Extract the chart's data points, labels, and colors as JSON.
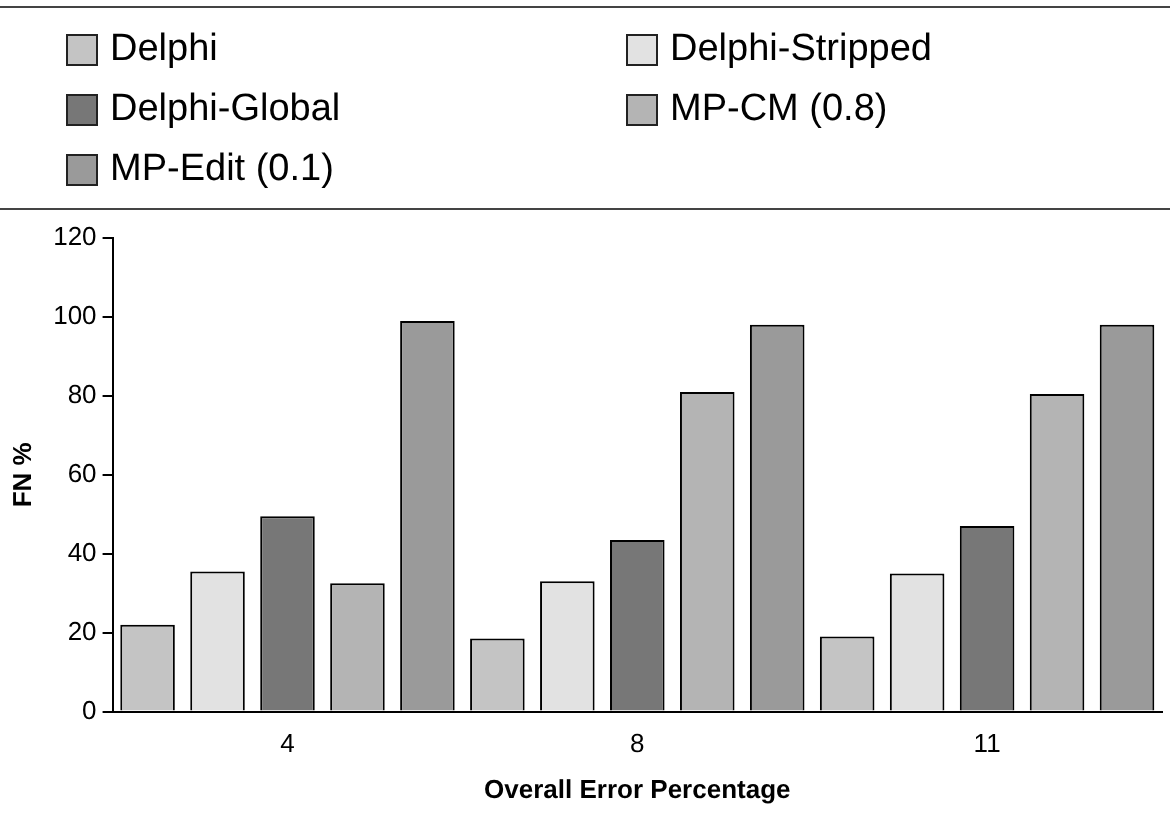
{
  "chart_data": {
    "type": "bar",
    "xlabel": "Overall Error Percentage",
    "ylabel": "FN %",
    "categories": [
      "4",
      "8",
      "11"
    ],
    "series": [
      {
        "name": "Delphi",
        "color": "#c4c4c4",
        "values": [
          22,
          18.5,
          19
        ]
      },
      {
        "name": "Delphi-Stripped",
        "color": "#e2e2e2",
        "values": [
          35.5,
          33,
          35
        ]
      },
      {
        "name": "Delphi-Global",
        "color": "#777777",
        "values": [
          49.5,
          43.5,
          47
        ]
      },
      {
        "name": "MP-CM (0.8)",
        "color": "#b4b4b4",
        "values": [
          32.5,
          81,
          80.5
        ]
      },
      {
        "name": "MP-Edit (0.1)",
        "color": "#9a9a9a",
        "values": [
          99,
          98,
          98
        ]
      }
    ],
    "ylim": [
      0,
      120
    ],
    "yticks": [
      0,
      20,
      40,
      60,
      80,
      100,
      120
    ],
    "grid": false,
    "legend": "top"
  }
}
